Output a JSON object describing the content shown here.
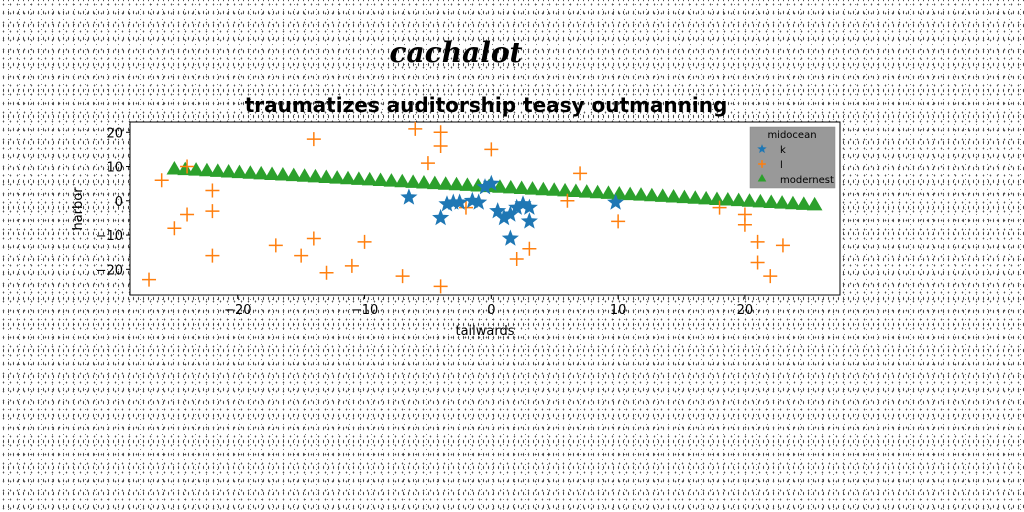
{
  "chart_data": {
    "type": "scatter",
    "suptitle": "cachalot",
    "title": "traumatizes auditorship teasy outmanning",
    "xlabel": "tailwards",
    "ylabel": "harbor",
    "xlim": [
      -28.5,
      27.5
    ],
    "ylim": [
      -27.5,
      23
    ],
    "xticks": [
      -20,
      -10,
      0,
      10,
      20
    ],
    "yticks": [
      -20,
      -10,
      0,
      10,
      20
    ],
    "tick_labels_x": [
      "−20",
      "−10",
      "0",
      "10",
      "20"
    ],
    "tick_labels_y": [
      "−20",
      "−10",
      "0",
      "10",
      "20"
    ],
    "legend": {
      "title": "midocean",
      "position": "top-right",
      "background": "#999999",
      "entries": [
        {
          "label": "k",
          "color": "#1f77b4",
          "marker": "star"
        },
        {
          "label": "l",
          "color": "#ff7f0e",
          "marker": "plus"
        },
        {
          "label": "modernest",
          "color": "#2ca02c",
          "marker": "triangle"
        }
      ]
    },
    "series": [
      {
        "name": "k",
        "marker": "star",
        "color": "#1f77b4",
        "points": [
          [
            -6.5,
            1
          ],
          [
            -4,
            -5
          ],
          [
            -3.5,
            -1
          ],
          [
            -2.5,
            -0.5
          ],
          [
            -1.5,
            0
          ],
          [
            -1,
            -0.5
          ],
          [
            -0.5,
            4
          ],
          [
            0,
            5
          ],
          [
            0.5,
            -3
          ],
          [
            1,
            -5
          ],
          [
            1.5,
            -4
          ],
          [
            1.5,
            -11
          ],
          [
            2,
            -2
          ],
          [
            2.5,
            -1
          ],
          [
            3,
            -6
          ],
          [
            3,
            -2
          ],
          [
            -3,
            -0.5
          ],
          [
            9.8,
            -0.5
          ]
        ]
      },
      {
        "name": "l",
        "marker": "plus",
        "color": "#ff7f0e",
        "points": [
          [
            -27,
            -23
          ],
          [
            -26,
            6
          ],
          [
            -25,
            -8
          ],
          [
            -24,
            10
          ],
          [
            -24,
            -4
          ],
          [
            -22,
            3
          ],
          [
            -22,
            -3
          ],
          [
            -22,
            -16
          ],
          [
            -17,
            -13
          ],
          [
            -15,
            -16
          ],
          [
            -14,
            18
          ],
          [
            -14,
            -11
          ],
          [
            -13,
            -21
          ],
          [
            -11,
            -19
          ],
          [
            -10,
            -12
          ],
          [
            -7,
            -22
          ],
          [
            -6,
            21
          ],
          [
            -5,
            11
          ],
          [
            -4,
            20
          ],
          [
            -4,
            16
          ],
          [
            -4,
            -25
          ],
          [
            -2,
            -2
          ],
          [
            0,
            15
          ],
          [
            2,
            -17
          ],
          [
            3,
            -14
          ],
          [
            6,
            0
          ],
          [
            7,
            8
          ],
          [
            10,
            -6
          ],
          [
            20,
            -4
          ],
          [
            20,
            -7
          ],
          [
            21,
            -12
          ],
          [
            21,
            -18
          ],
          [
            22,
            -22
          ],
          [
            23,
            -13
          ],
          [
            18,
            -2
          ]
        ]
      },
      {
        "name": "modernest",
        "marker": "triangle",
        "color": "#2ca02c",
        "line": {
          "x_start": -25,
          "x_end": 25.5,
          "y_start": 9,
          "y_end": -1.5,
          "count": 60
        }
      }
    ]
  }
}
